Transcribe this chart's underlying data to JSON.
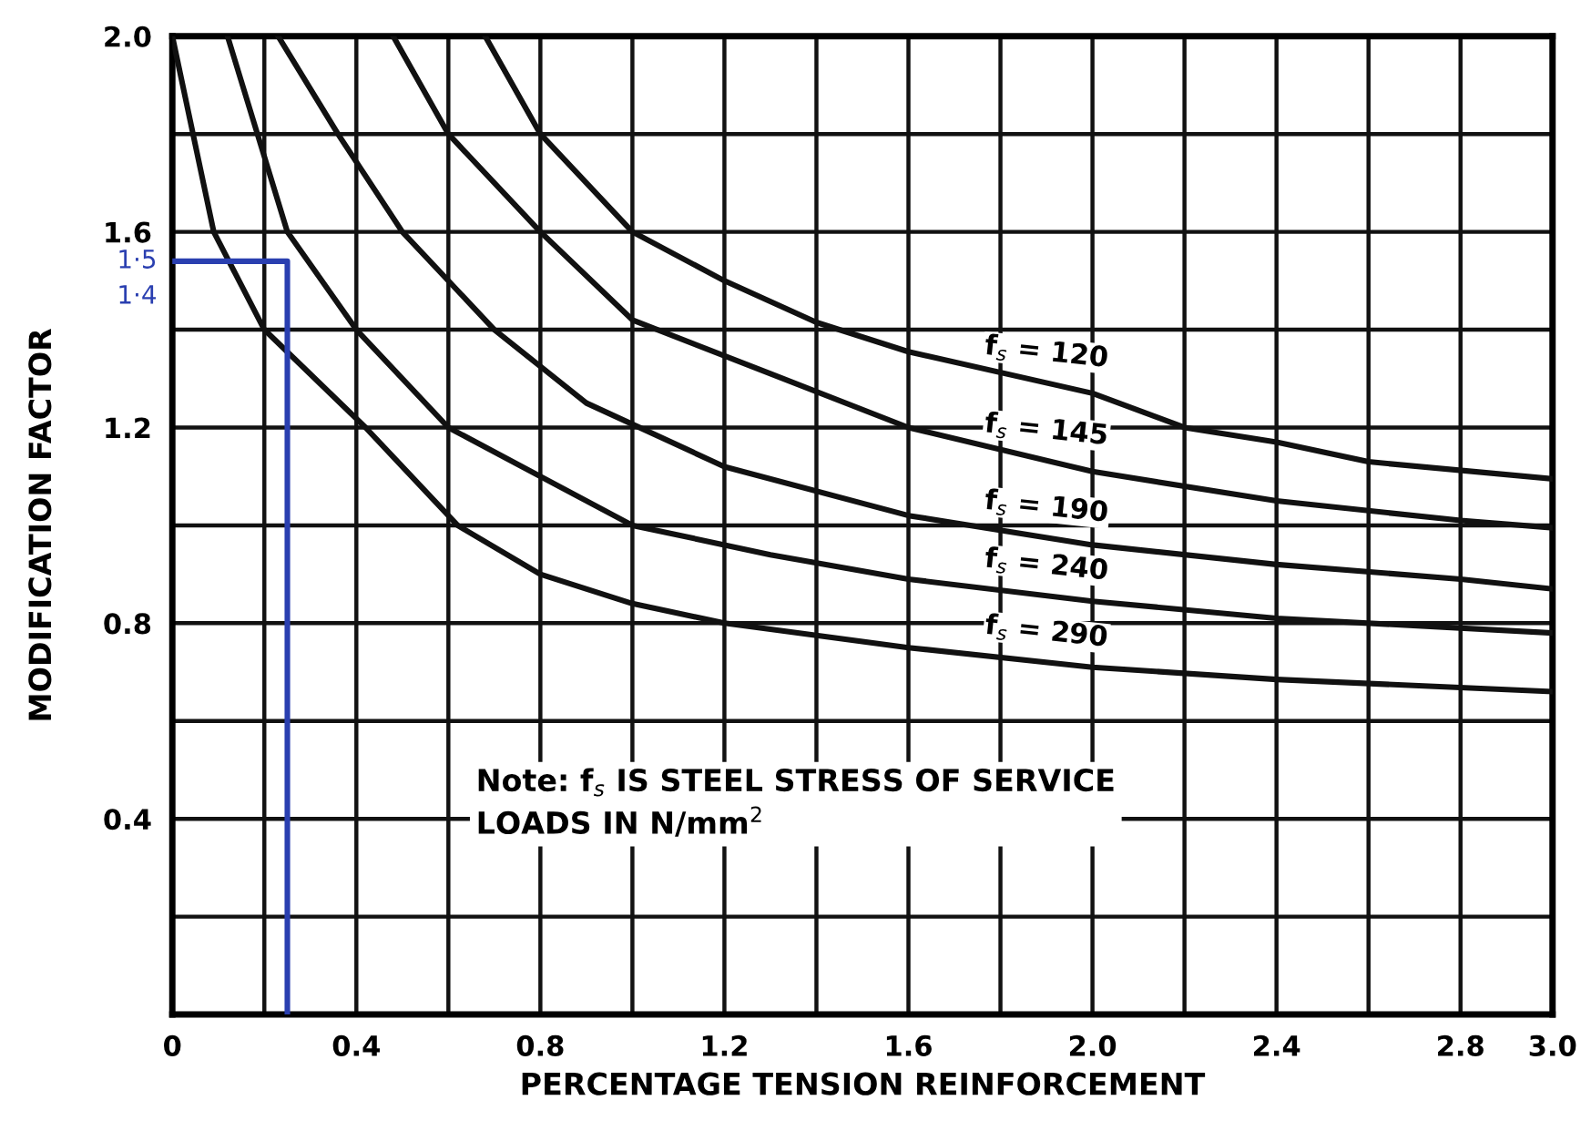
{
  "chart_data": {
    "type": "line",
    "xlabel": "PERCENTAGE TENSION REINFORCEMENT",
    "ylabel": "MODIFICATION FACTOR",
    "xlim": [
      0,
      3.0
    ],
    "ylim": [
      0,
      2.0
    ],
    "xticks": [
      0,
      {
        "value": 0.2,
        "label": null
      },
      {
        "value": 0.4,
        "label": "0.4"
      },
      {
        "value": 0.6,
        "label": null
      },
      {
        "value": 0.8,
        "label": "0.8"
      },
      {
        "value": 1.0,
        "label": null
      },
      {
        "value": 1.2,
        "label": "1.2"
      },
      {
        "value": 1.4,
        "label": null
      },
      {
        "value": 1.6,
        "label": "1.6"
      },
      {
        "value": 1.8,
        "label": null
      },
      {
        "value": 2.0,
        "label": "2.0"
      },
      {
        "value": 2.2,
        "label": null
      },
      {
        "value": 2.4,
        "label": "2.4"
      },
      {
        "value": 2.6,
        "label": null
      },
      {
        "value": 2.8,
        "label": "2.8"
      },
      {
        "value": 3.0,
        "label": "3.0"
      }
    ],
    "yticks": [
      {
        "value": 0,
        "label": null
      },
      {
        "value": 0.2,
        "label": null
      },
      {
        "value": 0.4,
        "label": "0.4"
      },
      {
        "value": 0.6,
        "label": null
      },
      {
        "value": 0.8,
        "label": "0.8"
      },
      {
        "value": 1.0,
        "label": null
      },
      {
        "value": 1.2,
        "label": "1.2"
      },
      {
        "value": 1.4,
        "label": null
      },
      {
        "value": 1.6,
        "label": "1.6"
      },
      {
        "value": 1.8,
        "label": null
      },
      {
        "value": 2.0,
        "label": "2.0"
      }
    ],
    "grid": true,
    "legend": false,
    "marker": "none",
    "line_style": "solid",
    "series": [
      {
        "name": "f$_{s}$ = 120",
        "color": "#111111",
        "x": [
          0.68,
          0.8,
          1.0,
          1.2,
          1.4,
          1.6,
          2.0,
          2.2,
          2.4,
          2.6,
          3.0
        ],
        "values": [
          2.0,
          1.8,
          1.6,
          1.5,
          1.415,
          1.355,
          1.27,
          1.2,
          1.17,
          1.13,
          1.095
        ]
      },
      {
        "name": "f$_{s}$ = 145",
        "color": "#111111",
        "x": [
          0.48,
          0.6,
          0.8,
          1.0,
          1.3,
          1.6,
          2.0,
          2.4,
          2.8,
          3.0
        ],
        "values": [
          2.0,
          1.8,
          1.6,
          1.42,
          1.31,
          1.2,
          1.11,
          1.05,
          1.01,
          0.995
        ]
      },
      {
        "name": "f$_{s}$ = 190",
        "color": "#111111",
        "x": [
          0.23,
          0.36,
          0.5,
          0.7,
          0.9,
          1.2,
          1.6,
          2.0,
          2.4,
          2.8,
          3.0
        ],
        "values": [
          2.0,
          1.8,
          1.6,
          1.4,
          1.25,
          1.12,
          1.02,
          0.96,
          0.92,
          0.89,
          0.87
        ]
      },
      {
        "name": "f$_{s}$ = 240",
        "color": "#111111",
        "x": [
          0.12,
          0.25,
          0.4,
          0.6,
          1.0,
          1.3,
          1.6,
          2.0,
          2.4,
          3.0
        ],
        "values": [
          2.0,
          1.6,
          1.4,
          1.2,
          1.0,
          0.94,
          0.89,
          0.845,
          0.81,
          0.78
        ]
      },
      {
        "name": "f$_{s}$ = 290",
        "color": "#111111",
        "x": [
          0,
          0.09,
          0.2,
          0.42,
          0.62,
          0.8,
          1.0,
          1.2,
          1.6,
          2.0,
          2.4,
          3.0
        ],
        "values": [
          2.0,
          1.6,
          1.4,
          1.2,
          1.0,
          0.9,
          0.84,
          0.8,
          0.75,
          0.71,
          0.685,
          0.66
        ]
      },
      {
        "color": "#2a3fb0",
        "x": [
          0,
          0.25,
          0.25
        ],
        "values": [
          1.54,
          1.54,
          0
        ]
      }
    ],
    "annotations": [
      "Note: f$_{s}$ IS STEEL STRESS OF SERVICE\nLOADS IN N/mm$^{2}$",
      "1·5",
      "1·4"
    ]
  }
}
